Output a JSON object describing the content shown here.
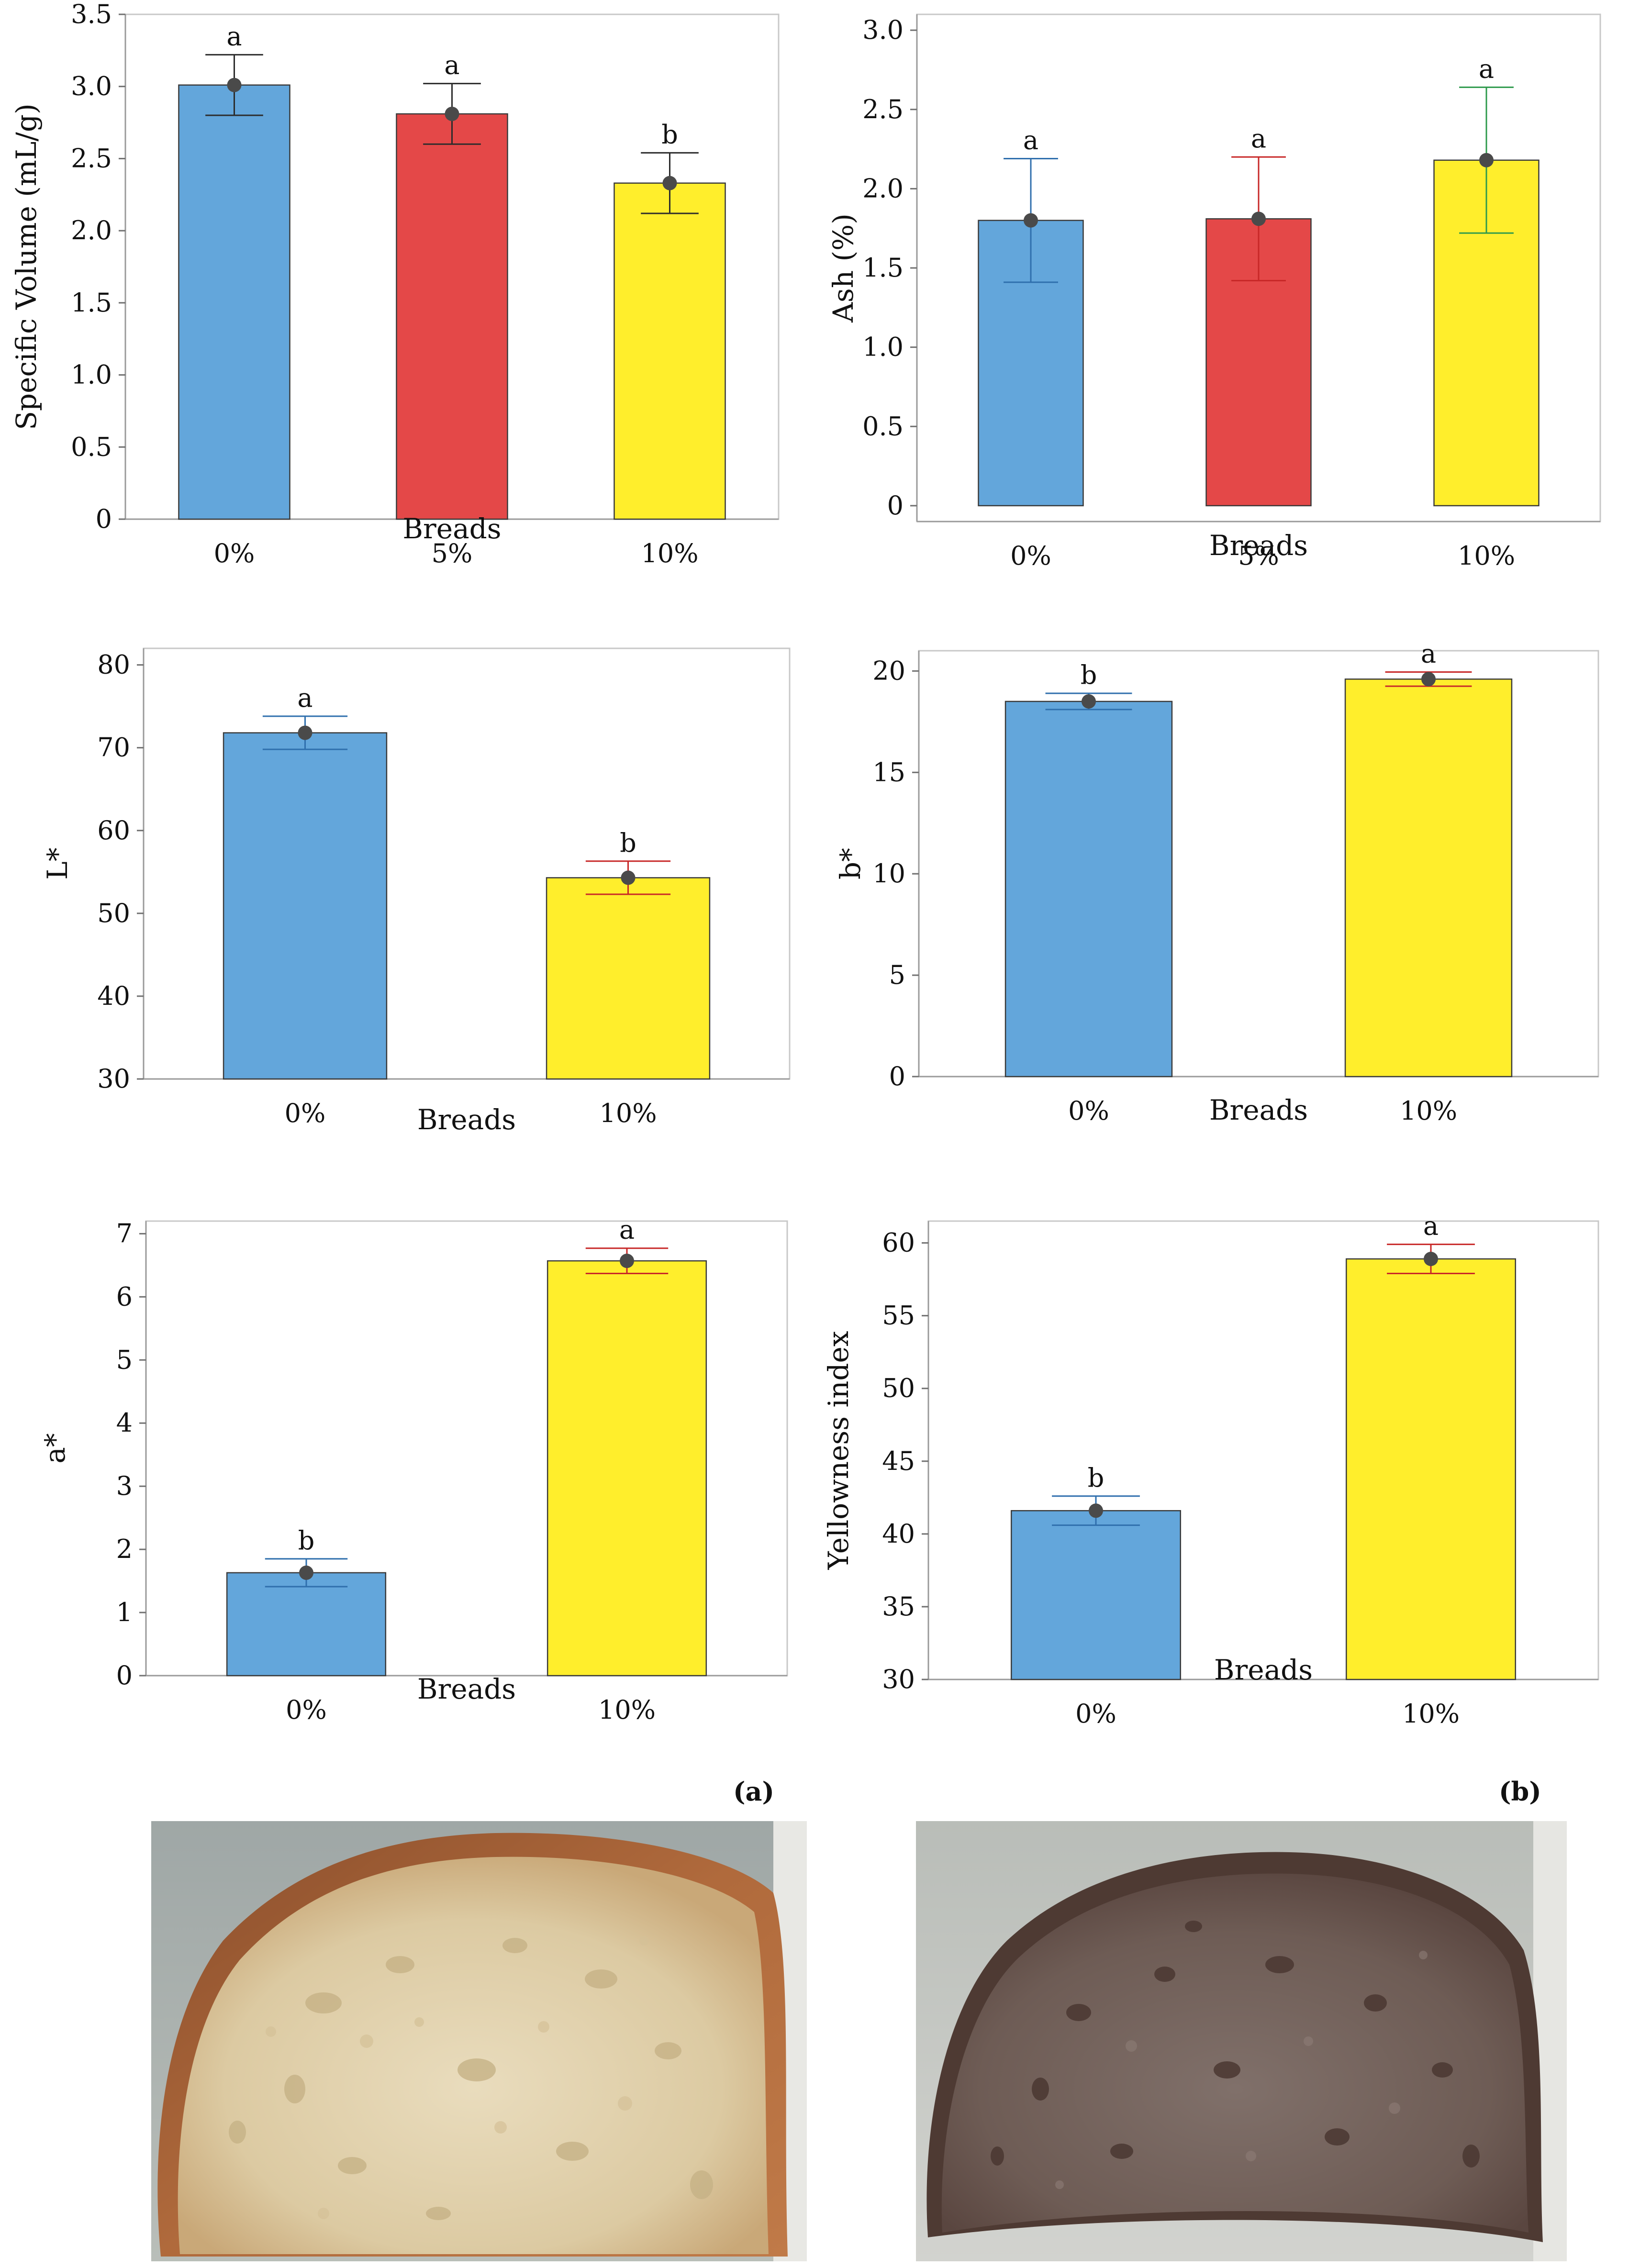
{
  "colors": {
    "blue": "#63a6db",
    "red": "#e44848",
    "yellow": "#ffee2c"
  },
  "panel_labels": {
    "a": "(a)",
    "b": "(b)"
  },
  "chart_data": [
    {
      "id": "specific-volume",
      "type": "bar",
      "xlabel": "Breads",
      "ylabel": "Specific Volume (mL/g)",
      "categories": [
        "0%",
        "5%",
        "10%"
      ],
      "values": [
        3.01,
        2.81,
        2.33
      ],
      "errors": [
        0.21,
        0.21,
        0.21
      ],
      "letters": [
        "a",
        "a",
        "b"
      ],
      "bar_colors": [
        "#63a6db",
        "#e44848",
        "#ffee2c"
      ],
      "error_colors": [
        "#2c2c2c",
        "#2c2c2c",
        "#2c2c2c"
      ],
      "ylim": [
        0,
        3.5
      ],
      "yticks": [
        0,
        0.5,
        1.0,
        1.5,
        2.0,
        2.5,
        3.0,
        3.5
      ],
      "ytick_labels": [
        "0",
        "0.5",
        "1.0",
        "1.5",
        "2.0",
        "2.5",
        "3.0",
        "3.5"
      ]
    },
    {
      "id": "ash",
      "type": "bar",
      "xlabel": "Breads",
      "ylabel": "Ash (%)",
      "categories": [
        "0%",
        "5%",
        "10%"
      ],
      "values": [
        1.8,
        1.81,
        2.18
      ],
      "errors": [
        0.39,
        0.39,
        0.46
      ],
      "letters": [
        "a",
        "a",
        "a"
      ],
      "bar_colors": [
        "#63a6db",
        "#e44848",
        "#ffee2c"
      ],
      "error_colors": [
        "#2f6fad",
        "#c82828",
        "#2e9a4c"
      ],
      "ylim": [
        -0.1,
        3.1
      ],
      "yticks": [
        0,
        0.5,
        1.0,
        1.5,
        2.0,
        2.5,
        3.0
      ],
      "ytick_labels": [
        "0",
        "0.5",
        "1.0",
        "1.5",
        "2.0",
        "2.5",
        "3.0"
      ]
    },
    {
      "id": "l-star",
      "type": "bar",
      "xlabel": "Breads",
      "ylabel": "L*",
      "categories": [
        "0%",
        "10%"
      ],
      "values": [
        71.8,
        54.3
      ],
      "errors": [
        2.0,
        2.0
      ],
      "letters": [
        "a",
        "b"
      ],
      "bar_colors": [
        "#63a6db",
        "#ffee2c"
      ],
      "error_colors": [
        "#2f6fad",
        "#c82828"
      ],
      "ylim": [
        30,
        82
      ],
      "yticks": [
        30,
        40,
        50,
        60,
        70,
        80
      ],
      "ytick_labels": [
        "30",
        "40",
        "50",
        "60",
        "70",
        "80"
      ]
    },
    {
      "id": "b-star",
      "type": "bar",
      "xlabel": "Breads",
      "ylabel": "b*",
      "categories": [
        "0%",
        "10%"
      ],
      "values": [
        18.5,
        19.6
      ],
      "errors": [
        0.4,
        0.35
      ],
      "letters": [
        "b",
        "a"
      ],
      "bar_colors": [
        "#63a6db",
        "#ffee2c"
      ],
      "error_colors": [
        "#2f6fad",
        "#c82828"
      ],
      "ylim": [
        0,
        21
      ],
      "yticks": [
        0,
        5,
        10,
        15,
        20
      ],
      "ytick_labels": [
        "0",
        "5",
        "10",
        "15",
        "20"
      ]
    },
    {
      "id": "a-star",
      "type": "bar",
      "xlabel": "Breads",
      "ylabel": "a*",
      "categories": [
        "0%",
        "10%"
      ],
      "values": [
        1.63,
        6.57
      ],
      "errors": [
        0.22,
        0.2
      ],
      "letters": [
        "b",
        "a"
      ],
      "bar_colors": [
        "#63a6db",
        "#ffee2c"
      ],
      "error_colors": [
        "#2f6fad",
        "#c82828"
      ],
      "ylim": [
        0,
        7.2
      ],
      "yticks": [
        0,
        1,
        2,
        3,
        4,
        5,
        6,
        7
      ],
      "ytick_labels": [
        "0",
        "1",
        "2",
        "3",
        "4",
        "5",
        "6",
        "7"
      ]
    },
    {
      "id": "yellowness-index",
      "type": "bar",
      "xlabel": "Breads",
      "ylabel": "Yellowness index",
      "categories": [
        "0%",
        "10%"
      ],
      "values": [
        41.6,
        58.9
      ],
      "errors": [
        1.0,
        1.0
      ],
      "letters": [
        "b",
        "a"
      ],
      "bar_colors": [
        "#63a6db",
        "#ffee2c"
      ],
      "error_colors": [
        "#2f6fad",
        "#c82828"
      ],
      "ylim": [
        30,
        61.5
      ],
      "yticks": [
        30,
        35,
        40,
        45,
        50,
        55,
        60
      ],
      "ytick_labels": [
        "30",
        "35",
        "40",
        "45",
        "50",
        "55",
        "60"
      ]
    }
  ]
}
